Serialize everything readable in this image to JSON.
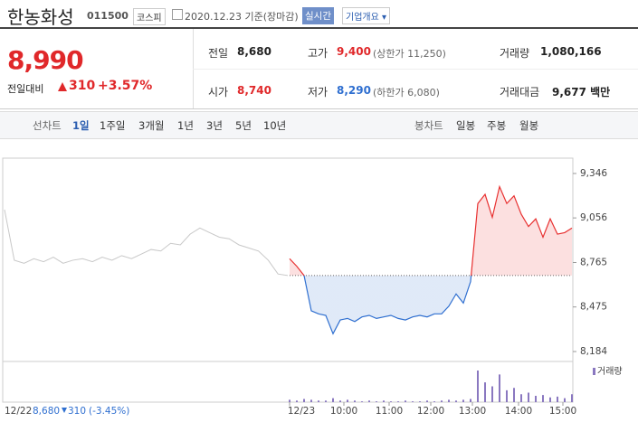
{
  "header": {
    "name": "한농화성",
    "code": "011500",
    "market": "코스피",
    "date": "2020.12.23 기준(장마감)",
    "realtime": "실시간",
    "company_info": "기업개요"
  },
  "quote": {
    "price": "8,990",
    "change_label": "전일대비",
    "change": "310",
    "change_pct": "+3.57%"
  },
  "stats": [
    {
      "label": "전일",
      "value": "8,680"
    },
    {
      "label": "고가",
      "value": "9,400",
      "note": "(상한가 11,250)"
    },
    {
      "label": "거래량",
      "value": "1,080,166"
    },
    {
      "label": "시가",
      "value": "8,740"
    },
    {
      "label": "저가",
      "value": "8,290",
      "note": "(하한가 6,080)"
    },
    {
      "label": "거래대금",
      "value": "9,677 백만"
    }
  ],
  "tabs": {
    "line_label": "선차트",
    "periods": [
      "1일",
      "1주일",
      "3개월",
      "1년",
      "3년",
      "5년",
      "10년"
    ],
    "candle_label": "봉차트",
    "candles": [
      "일봉",
      "주봉",
      "월봉"
    ]
  },
  "chart_data": {
    "type": "line",
    "ylim": [
      8131,
      9446
    ],
    "yticks": [
      {
        "value": 9346,
        "label": "9,346"
      },
      {
        "value": 9056,
        "label": "9,056"
      },
      {
        "value": 8765,
        "label": "8,765"
      },
      {
        "value": 8475,
        "label": "8,475"
      },
      {
        "value": 8184,
        "label": "8,184"
      }
    ],
    "baseline": 8680,
    "previous": {
      "color": "#c8c8c8",
      "values": [
        9110,
        8780,
        8760,
        8790,
        8770,
        8800,
        8760,
        8780,
        8790,
        8770,
        8800,
        8780,
        8810,
        8790,
        8820,
        8850,
        8840,
        8890,
        8880,
        8950,
        8990,
        8960,
        8930,
        8920,
        8880,
        8860,
        8840,
        8780,
        8690,
        8680
      ]
    },
    "today": {
      "color_up": "#e83030",
      "color_down": "#2f6fd0",
      "values": [
        8790,
        8740,
        8680,
        8450,
        8430,
        8420,
        8300,
        8390,
        8400,
        8380,
        8410,
        8420,
        8400,
        8410,
        8420,
        8400,
        8390,
        8410,
        8420,
        8410,
        8430,
        8430,
        8480,
        8560,
        8500,
        8640,
        9150,
        9210,
        9060,
        9260,
        9150,
        9200,
        9080,
        9000,
        9050,
        8930,
        9050,
        8950,
        8960,
        8990
      ]
    },
    "volume": {
      "name": "거래량",
      "color": "#8a78c0",
      "values": [
        3,
        2,
        4,
        3,
        2,
        2,
        5,
        2,
        3,
        2,
        1,
        2,
        1,
        2,
        1,
        1,
        2,
        1,
        1,
        2,
        1,
        2,
        3,
        2,
        3,
        4,
        40,
        25,
        20,
        35,
        15,
        18,
        10,
        12,
        8,
        9,
        6,
        7,
        5,
        10
      ]
    },
    "days": [
      "12/23"
    ],
    "times": [
      "10:00",
      "11:00",
      "12:00",
      "13:00",
      "14:00",
      "15:00"
    ],
    "prev_day": {
      "date": "12/22",
      "close": "8,680",
      "change": "310",
      "change_pct": "(-3.45%)"
    }
  }
}
